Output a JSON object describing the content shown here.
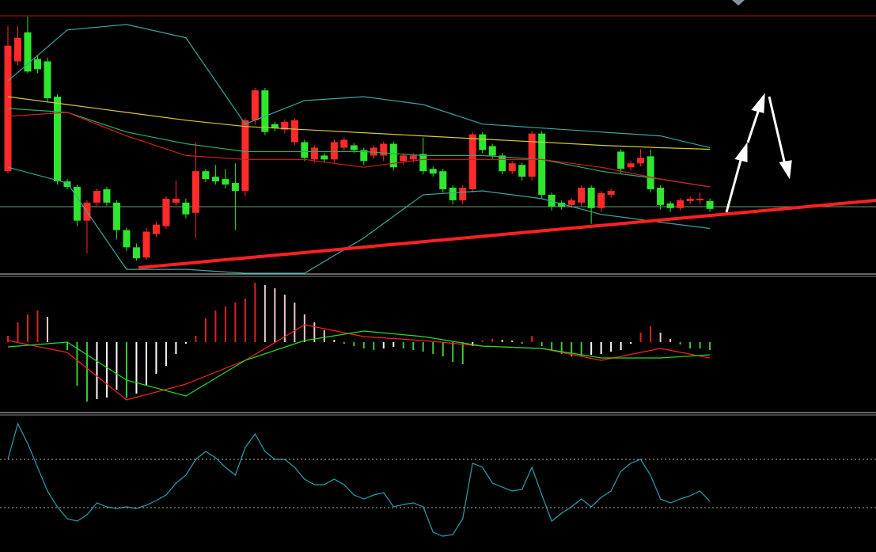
{
  "chart_data": [
    {
      "type": "candlestick",
      "categories": [
        null,
        null,
        null,
        null,
        null,
        null,
        null,
        null,
        null,
        null,
        null,
        null,
        null,
        null,
        null,
        null,
        null,
        null,
        null,
        null,
        null,
        null,
        null,
        null,
        null,
        null,
        null,
        null,
        null,
        null,
        null,
        null,
        null,
        null,
        null,
        null,
        null,
        null,
        null,
        null,
        null,
        null,
        null,
        null,
        null,
        null,
        null,
        null,
        null,
        null,
        null,
        null,
        null,
        null,
        null,
        null,
        null,
        null,
        null,
        null,
        null,
        null,
        null,
        null,
        null,
        null,
        null,
        null,
        null,
        null,
        null,
        null
      ],
      "open": [
        132,
        272,
        309,
        275,
        272,
        227,
        119,
        112,
        69,
        92,
        109,
        92,
        57,
        35,
        22,
        52,
        62,
        92,
        92,
        79,
        132,
        125,
        122,
        117,
        107,
        197,
        235,
        192,
        185,
        169,
        169,
        147,
        152,
        147,
        162,
        165,
        159,
        152,
        152,
        167,
        145,
        147,
        154,
        135,
        132,
        111,
        95,
        109,
        179,
        164,
        152,
        132,
        140,
        125,
        180,
        102,
        92,
        89,
        92,
        111,
        85,
        102,
        157,
        137,
        142,
        151,
        111,
        91,
        85,
        94,
        95,
        94
      ],
      "high": [
        317,
        317,
        329,
        280,
        277,
        230,
        122,
        115,
        95,
        110,
        112,
        95,
        60,
        40,
        60,
        68,
        100,
        120,
        97,
        169,
        135,
        140,
        135,
        142,
        200,
        238,
        238,
        195,
        198,
        200,
        172,
        165,
        155,
        172,
        175,
        168,
        162,
        165,
        170,
        170,
        155,
        155,
        175,
        138,
        135,
        114,
        114,
        182,
        182,
        167,
        155,
        145,
        143,
        183,
        183,
        105,
        95,
        98,
        114,
        114,
        107,
        110,
        160,
        145,
        160,
        160,
        114,
        94,
        98,
        100,
        105,
        97
      ],
      "low": [
        129,
        267,
        257,
        257,
        220,
        115,
        109,
        62,
        27,
        88,
        88,
        45,
        30,
        18,
        19,
        48,
        58,
        88,
        72,
        47,
        118,
        115,
        110,
        57,
        100,
        192,
        178,
        183,
        180,
        165,
        145,
        143,
        143,
        143,
        158,
        155,
        140,
        148,
        145,
        133,
        140,
        143,
        128,
        125,
        105,
        90,
        90,
        105,
        155,
        148,
        128,
        128,
        120,
        120,
        97,
        82,
        83,
        85,
        88,
        65,
        80,
        98,
        130,
        133,
        138,
        105,
        83,
        80,
        82,
        90,
        90,
        80
      ],
      "close": [
        292,
        302,
        259,
        262,
        225,
        119,
        112,
        69,
        92,
        107,
        92,
        57,
        35,
        21,
        55,
        64,
        97,
        97,
        77,
        132,
        122,
        119,
        115,
        107,
        197,
        235,
        182,
        187,
        195,
        197,
        149,
        162,
        147,
        169,
        172,
        159,
        145,
        162,
        167,
        137,
        152,
        152,
        132,
        129,
        109,
        95,
        111,
        179,
        159,
        152,
        132,
        142,
        125,
        180,
        102,
        87,
        87,
        95,
        111,
        85,
        104,
        107,
        135,
        142,
        149,
        109,
        89,
        85,
        95,
        97,
        97,
        84
      ],
      "up_color": "#ff2a2a",
      "down_color": "#2ee62e",
      "xlim": [
        -0.8,
        87.8
      ],
      "ylim": [
        0,
        330
      ]
    },
    {
      "type": "line",
      "x": [
        0,
        6,
        12,
        18,
        24,
        30,
        36,
        42,
        48,
        54,
        60,
        66,
        71
      ],
      "series": [
        {
          "color": "#3aa8a0",
          "values": [
            247,
            312,
            319,
            302,
            192,
            222,
            227,
            217,
            192,
            187,
            182,
            177,
            162
          ]
        },
        {
          "color": "#3aa8a0",
          "values": [
            137,
            117,
            7,
            7,
            2,
            2,
            47,
            102,
            107,
            97,
            77,
            67,
            59
          ]
        },
        {
          "color": "#2fa86a",
          "values": [
            212,
            207,
            182,
            167,
            157,
            157,
            157,
            152,
            152,
            147,
            132,
            122,
            112
          ]
        },
        {
          "color": "#d8c838",
          "values": [
            227,
            217,
            207,
            197,
            189,
            185,
            181,
            177,
            173,
            169,
            165,
            162,
            160
          ]
        },
        {
          "color": "#d02020",
          "values": [
            202,
            207,
            177,
            152,
            147,
            147,
            137,
            147,
            147,
            147,
            137,
            122,
            112
          ]
        }
      ],
      "xlim": [
        -0.8,
        87.8
      ],
      "ylim": [
        0,
        330
      ]
    },
    {
      "type": "macd",
      "categories": [
        null,
        null,
        null,
        null,
        null,
        null,
        null,
        null,
        null,
        null,
        null,
        null,
        null,
        null,
        null,
        null,
        null,
        null,
        null,
        null,
        null,
        null,
        null,
        null,
        null,
        null,
        null,
        null,
        null,
        null,
        null,
        null,
        null,
        null,
        null,
        null,
        null,
        null,
        null,
        null,
        null,
        null,
        null,
        null,
        null,
        null,
        null,
        null,
        null,
        null,
        null,
        null,
        null,
        null,
        null,
        null,
        null,
        null,
        null,
        null,
        null,
        null,
        null,
        null,
        null,
        null,
        null,
        null,
        null,
        null,
        null,
        null
      ],
      "values": [
        8,
        25,
        35,
        40,
        32,
        0,
        -10,
        -55,
        -75,
        -72,
        -70,
        -60,
        -70,
        -65,
        -55,
        -40,
        -30,
        -15,
        -2,
        8,
        30,
        40,
        45,
        50,
        55,
        75,
        72,
        68,
        60,
        50,
        35,
        25,
        15,
        3,
        -2,
        -5,
        -8,
        -10,
        -8,
        -6,
        -8,
        -10,
        -12,
        -15,
        -18,
        -25,
        -28,
        -5,
        2,
        4,
        3,
        2,
        -2,
        8,
        -5,
        -10,
        -15,
        -18,
        -18,
        -16,
        -15,
        -12,
        -10,
        -2,
        12,
        20,
        12,
        4,
        -3,
        -8,
        -8,
        -10
      ],
      "bar_colors": {
        "rising_positive": "#e02020",
        "falling_positive": "#f0c8c8",
        "falling_negative": "#3cc83c",
        "rising_negative": "#ffffff"
      },
      "x": [
        0,
        6,
        12,
        18,
        24,
        30,
        36,
        42,
        48,
        54,
        60,
        66,
        71
      ],
      "series": [
        {
          "color": "#ff2020",
          "values": [
            2,
            -13,
            -73,
            -53,
            -23,
            22,
            7,
            2,
            -5,
            -8,
            -23,
            -8,
            -20
          ]
        },
        {
          "color": "#20e020",
          "values": [
            -6,
            0,
            -48,
            -68,
            -23,
            2,
            14,
            7,
            -5,
            -8,
            -20,
            -20,
            -16
          ]
        }
      ],
      "xlim": [
        -0.8,
        87.8
      ],
      "ylim": [
        -88,
        80
      ]
    },
    {
      "type": "line",
      "categories": [
        null,
        null,
        null,
        null,
        null,
        null,
        null,
        null,
        null,
        null,
        null,
        null,
        null,
        null,
        null,
        null,
        null,
        null,
        null,
        null,
        null,
        null,
        null,
        null,
        null,
        null,
        null,
        null,
        null,
        null,
        null,
        null,
        null,
        null,
        null,
        null,
        null,
        null,
        null,
        null,
        null,
        null,
        null,
        null,
        null,
        null,
        null,
        null,
        null,
        null,
        null,
        null,
        null,
        null,
        null,
        null,
        null,
        null,
        null,
        null,
        null,
        null,
        null,
        null,
        null,
        null,
        null,
        null,
        null,
        null,
        null,
        null
      ],
      "series": [
        {
          "color": "#2aa0b0",
          "values": [
            117,
            162,
            137,
            107,
            77,
            57,
            42,
            39,
            47,
            62,
            57,
            55,
            57,
            55,
            59,
            65,
            72,
            87,
            97,
            117,
            127,
            119,
            107,
            97,
            132,
            149,
            127,
            117,
            117,
            107,
            92,
            85,
            85,
            92,
            85,
            72,
            67,
            72,
            75,
            57,
            60,
            62,
            57,
            25,
            20,
            22,
            42,
            112,
            107,
            87,
            82,
            77,
            79,
            107,
            72,
            39,
            49,
            57,
            67,
            57,
            69,
            77,
            102,
            112,
            117,
            97,
            67,
            62,
            67,
            71,
            77,
            64
          ]
        }
      ],
      "levels": [
        117,
        56
      ],
      "xlim": [
        -0.8,
        87.8
      ],
      "ylim": [
        0,
        170
      ]
    }
  ]
}
